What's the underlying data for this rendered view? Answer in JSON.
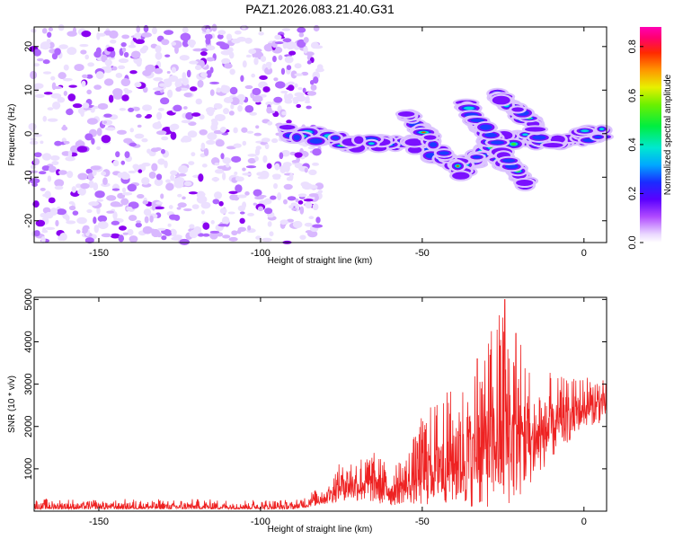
{
  "title": "PAZ1.2026.083.21.40.G31",
  "colors": {
    "signal": "#ee2222",
    "axis": "#000000",
    "purple_strong": "#8a00f0",
    "purple_light": "#d9b8ff"
  },
  "chart_data": [
    {
      "type": "heatmap",
      "name": "spectrogram",
      "xlabel": "Height of straight line (km)",
      "ylabel": "Frequency (Hz)",
      "xlim": [
        -170,
        7
      ],
      "ylim": [
        -25,
        24.5
      ],
      "xticks": [
        -150,
        -100,
        -50,
        0
      ],
      "yticks": [
        -20,
        -10,
        0,
        10,
        20
      ],
      "noise_region_x": [
        -170,
        -83
      ],
      "signal_track": [
        {
          "x": -93,
          "y": 0.5
        },
        {
          "x": -80,
          "y": -1
        },
        {
          "x": -70,
          "y": -2.5
        },
        {
          "x": -60,
          "y": -2
        },
        {
          "x": -50,
          "y": -3
        },
        {
          "x": -42,
          "y": -6
        },
        {
          "x": -35,
          "y": -8
        },
        {
          "x": -30,
          "y": -2
        },
        {
          "x": -20,
          "y": -1
        },
        {
          "x": -10,
          "y": -1.5
        },
        {
          "x": 0,
          "y": -0.5
        },
        {
          "x": 7,
          "y": 0.5
        }
      ],
      "mirror_tracks": [
        {
          "from": [
            -55,
            5
          ],
          "to": [
            -38,
            -9
          ]
        },
        {
          "from": [
            -37,
            7
          ],
          "to": [
            -24,
            -8
          ]
        },
        {
          "from": [
            -33,
            3.5
          ],
          "to": [
            -17,
            -12.5
          ]
        },
        {
          "from": [
            -27,
            9
          ],
          "to": [
            -14,
            1
          ]
        }
      ],
      "colorbar": {
        "label": "Normalized spectral amplitude",
        "range": [
          0,
          0.88
        ],
        "ticks": [
          0.0,
          0.2,
          0.4,
          0.6,
          0.8
        ]
      }
    },
    {
      "type": "line",
      "name": "snr",
      "xlabel": "Height of straight line (km)",
      "ylabel": "SNR (10 * v/v)",
      "xlim": [
        -170,
        7
      ],
      "ylim": [
        0,
        5050
      ],
      "xticks": [
        -150,
        -100,
        -50,
        0
      ],
      "yticks": [
        1000,
        2000,
        3000,
        4000,
        5000
      ],
      "envelope": [
        {
          "x": -170,
          "low": 50,
          "high": 300
        },
        {
          "x": -90,
          "low": 50,
          "high": 280
        },
        {
          "x": -80,
          "low": 150,
          "high": 600
        },
        {
          "x": -75,
          "low": 250,
          "high": 1200
        },
        {
          "x": -65,
          "low": 200,
          "high": 1400
        },
        {
          "x": -60,
          "low": 100,
          "high": 1100
        },
        {
          "x": -55,
          "low": 200,
          "high": 1300
        },
        {
          "x": -50,
          "low": 100,
          "high": 2300
        },
        {
          "x": -45,
          "low": 200,
          "high": 2700
        },
        {
          "x": -35,
          "low": 100,
          "high": 3200
        },
        {
          "x": -25,
          "low": 50,
          "high": 5000
        },
        {
          "x": -20,
          "low": 300,
          "high": 4200
        },
        {
          "x": -15,
          "low": 800,
          "high": 3000
        },
        {
          "x": -10,
          "low": 1200,
          "high": 3300
        },
        {
          "x": -5,
          "low": 1600,
          "high": 3100
        },
        {
          "x": 0,
          "low": 2000,
          "high": 3200
        },
        {
          "x": 7,
          "low": 2100,
          "high": 3300
        }
      ],
      "peaks": [
        {
          "x": -24.5,
          "y": 5000
        },
        {
          "x": -21,
          "y": 4200
        },
        {
          "x": -33,
          "y": 3600
        }
      ]
    }
  ]
}
